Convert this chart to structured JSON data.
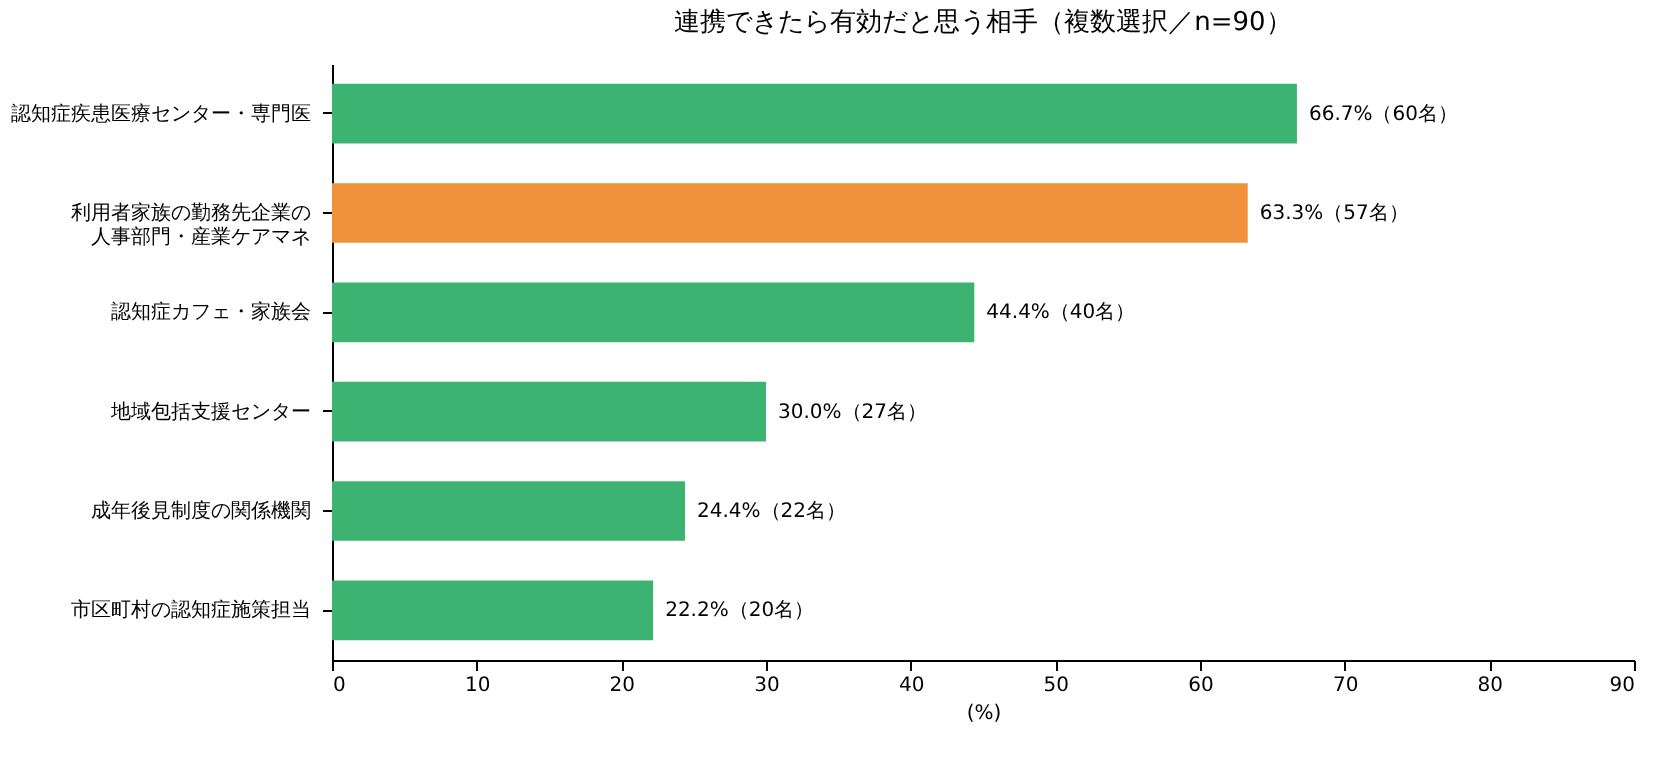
{
  "chart_data": {
    "type": "bar",
    "orientation": "horizontal",
    "title": "連携できたら有効だと思う相手（複数選択／n=90）",
    "xlabel": "(%)",
    "categories": [
      "認知症疾患医療センター・専門医",
      "利用者家族の勤務先企業の人事部門・産業ケアマネ",
      "認知症カフェ・家族会",
      "地域包括支援センター",
      "成年後見制度の関係機関",
      "市区町村の認知症施策担当"
    ],
    "values": [
      66.7,
      63.3,
      44.4,
      30.0,
      24.4,
      22.2
    ],
    "colors": [
      "#3cb371",
      "#f0913c",
      "#3cb371",
      "#3cb371",
      "#3cb371",
      "#3cb371"
    ],
    "value_labels": [
      "66.7%（60名）",
      "63.3%（57名）",
      "44.4%（40名）",
      "30.0%（27名）",
      "24.4%（22名）",
      "22.2%（20名）"
    ],
    "xlim": [
      0,
      90
    ],
    "xticks": [
      0,
      10,
      20,
      30,
      40,
      50,
      60,
      70,
      80,
      90
    ],
    "grid": false
  }
}
